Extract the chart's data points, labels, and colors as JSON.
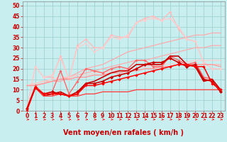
{
  "background_color": "#c8eef0",
  "grid_color": "#99cccc",
  "xlabel": "Vent moyen/en rafales ( km/h )",
  "xlabel_color": "#cc0000",
  "xlabel_fontsize": 7,
  "xtick_fontsize": 5.5,
  "ytick_fontsize": 5.5,
  "xlim": [
    -0.5,
    23.5
  ],
  "ylim": [
    0,
    52
  ],
  "yticks": [
    0,
    5,
    10,
    15,
    20,
    25,
    30,
    35,
    40,
    45,
    50
  ],
  "xticks": [
    0,
    1,
    2,
    3,
    4,
    5,
    6,
    7,
    8,
    9,
    10,
    11,
    12,
    13,
    14,
    15,
    16,
    17,
    18,
    19,
    20,
    21,
    22,
    23
  ],
  "lines": [
    {
      "x": [
        0,
        1,
        2,
        3,
        4,
        5,
        6,
        7,
        8,
        9,
        10,
        11,
        12,
        13,
        14,
        15,
        16,
        17,
        18,
        19,
        20,
        21,
        22,
        23
      ],
      "y": [
        1,
        21,
        16,
        16,
        26,
        15,
        31,
        34,
        30,
        30,
        36,
        35,
        35,
        42,
        44,
        45,
        43,
        47,
        39,
        34,
        33,
        23,
        20,
        20
      ],
      "color": "#ffbbbb",
      "lw": 0.9,
      "marker": "D",
      "markersize": 2.0,
      "alpha": 1.0,
      "zorder": 2
    },
    {
      "x": [
        0,
        1,
        2,
        3,
        4,
        5,
        6,
        7,
        8,
        9,
        10,
        11,
        12,
        13,
        14,
        15,
        16,
        17,
        18,
        19,
        20,
        21,
        22,
        23
      ],
      "y": [
        12,
        12,
        13,
        14,
        15,
        16,
        18,
        20,
        21,
        22,
        24,
        26,
        28,
        29,
        30,
        31,
        32,
        33,
        34,
        35,
        36,
        36,
        37,
        37
      ],
      "color": "#ffaaaa",
      "lw": 0.9,
      "marker": null,
      "markersize": 0,
      "alpha": 1.0,
      "zorder": 2
    },
    {
      "x": [
        0,
        1,
        2,
        3,
        4,
        5,
        6,
        7,
        8,
        9,
        10,
        11,
        12,
        13,
        14,
        15,
        16,
        17,
        18,
        19,
        20,
        21,
        22,
        23
      ],
      "y": [
        1,
        21,
        16,
        17,
        25,
        15,
        30,
        32,
        28,
        30,
        35,
        34,
        36,
        42,
        43,
        44,
        43,
        44,
        40,
        34,
        33,
        23,
        20,
        20
      ],
      "color": "#ffcccc",
      "lw": 0.9,
      "marker": "D",
      "markersize": 1.8,
      "alpha": 1.0,
      "zorder": 2
    },
    {
      "x": [
        0,
        1,
        2,
        3,
        4,
        5,
        6,
        7,
        8,
        9,
        10,
        11,
        12,
        13,
        14,
        15,
        16,
        17,
        18,
        19,
        20,
        21,
        22,
        23
      ],
      "y": [
        12,
        12,
        13,
        14,
        14,
        16,
        17,
        18,
        19,
        20,
        21,
        22,
        23,
        24,
        24,
        25,
        26,
        27,
        28,
        29,
        30,
        30,
        31,
        31
      ],
      "color": "#ffaaaa",
      "lw": 0.9,
      "marker": null,
      "markersize": 0,
      "alpha": 1.0,
      "zorder": 2
    },
    {
      "x": [
        0,
        1,
        2,
        3,
        4,
        5,
        6,
        7,
        8,
        9,
        10,
        11,
        12,
        13,
        14,
        15,
        16,
        17,
        18,
        19,
        20,
        21,
        22,
        23
      ],
      "y": [
        1,
        12,
        8,
        9,
        19,
        8,
        14,
        20,
        19,
        18,
        20,
        21,
        20,
        24,
        24,
        21,
        21,
        26,
        24,
        22,
        23,
        16,
        15,
        10
      ],
      "color": "#ff6666",
      "lw": 1.0,
      "marker": "D",
      "markersize": 2.0,
      "alpha": 1.0,
      "zorder": 3
    },
    {
      "x": [
        0,
        1,
        2,
        3,
        4,
        5,
        6,
        7,
        8,
        9,
        10,
        11,
        12,
        13,
        14,
        15,
        16,
        17,
        18,
        19,
        20,
        21,
        22,
        23
      ],
      "y": [
        1,
        11,
        8,
        9,
        8,
        7,
        9,
        13,
        13,
        14,
        16,
        17,
        18,
        20,
        22,
        23,
        23,
        25,
        23,
        21,
        22,
        15,
        14,
        9
      ],
      "color": "#cc0000",
      "lw": 1.2,
      "marker": "D",
      "markersize": 2.5,
      "alpha": 1.0,
      "zorder": 4
    },
    {
      "x": [
        0,
        1,
        2,
        3,
        4,
        5,
        6,
        7,
        8,
        9,
        10,
        11,
        12,
        13,
        14,
        15,
        16,
        17,
        18,
        19,
        20,
        21,
        22,
        23
      ],
      "y": [
        0,
        11,
        8,
        8,
        8,
        7,
        8,
        12,
        12,
        13,
        14,
        15,
        16,
        17,
        18,
        19,
        20,
        21,
        22,
        22,
        21,
        21,
        13,
        10
      ],
      "color": "#ff0000",
      "lw": 1.1,
      "marker": "D",
      "markersize": 2.2,
      "alpha": 1.0,
      "zorder": 4
    },
    {
      "x": [
        0,
        1,
        2,
        3,
        4,
        5,
        6,
        7,
        8,
        9,
        10,
        11,
        12,
        13,
        14,
        15,
        16,
        17,
        18,
        19,
        20,
        21,
        22,
        23
      ],
      "y": [
        1,
        11,
        7,
        8,
        9,
        7,
        8,
        13,
        14,
        16,
        18,
        19,
        19,
        22,
        22,
        22,
        22,
        26,
        26,
        22,
        21,
        14,
        15,
        10
      ],
      "color": "#cc0000",
      "lw": 1.2,
      "marker": null,
      "markersize": 0,
      "alpha": 1.0,
      "zorder": 3
    },
    {
      "x": [
        0,
        1,
        2,
        3,
        4,
        5,
        6,
        7,
        8,
        9,
        10,
        11,
        12,
        13,
        14,
        15,
        16,
        17,
        18,
        19,
        20,
        21,
        22,
        23
      ],
      "y": [
        12,
        13,
        14,
        14,
        15,
        15,
        16,
        16,
        17,
        17,
        18,
        18,
        19,
        19,
        20,
        20,
        21,
        21,
        22,
        22,
        22,
        22,
        22,
        22
      ],
      "color": "#ffbbbb",
      "lw": 0.9,
      "marker": null,
      "markersize": 0,
      "alpha": 1.0,
      "zorder": 2
    },
    {
      "x": [
        0,
        1,
        2,
        3,
        4,
        5,
        6,
        7,
        8,
        9,
        10,
        11,
        12,
        13,
        14,
        15,
        16,
        17,
        18,
        19,
        20,
        21,
        22,
        23
      ],
      "y": [
        12,
        13,
        14,
        15,
        16,
        16,
        17,
        17,
        18,
        18,
        19,
        19,
        20,
        20,
        21,
        21,
        22,
        22,
        23,
        23,
        24,
        24,
        24,
        24
      ],
      "color": "#ffcccc",
      "lw": 0.9,
      "marker": null,
      "markersize": 0,
      "alpha": 1.0,
      "zorder": 2
    },
    {
      "x": [
        0,
        1,
        2,
        3,
        4,
        5,
        6,
        7,
        8,
        9,
        10,
        11,
        12,
        13,
        14,
        15,
        16,
        17,
        18,
        19,
        20,
        21,
        22,
        23
      ],
      "y": [
        1,
        11,
        7,
        7,
        8,
        7,
        7,
        8,
        8,
        9,
        9,
        9,
        9,
        10,
        10,
        10,
        10,
        10,
        10,
        10,
        10,
        10,
        10,
        10
      ],
      "color": "#ff4444",
      "lw": 1.0,
      "marker": null,
      "markersize": 0,
      "alpha": 1.0,
      "zorder": 3
    },
    {
      "x": [
        0,
        1,
        2,
        3,
        4,
        5,
        6,
        7,
        8,
        9,
        10,
        11,
        12,
        13,
        14,
        15,
        16,
        17,
        18,
        19,
        20,
        21,
        22,
        23
      ],
      "y": [
        12,
        12,
        13,
        14,
        15,
        15,
        16,
        16,
        17,
        17,
        18,
        18,
        19,
        19,
        20,
        20,
        21,
        21,
        22,
        22,
        22,
        22,
        22,
        21
      ],
      "color": "#ff9999",
      "lw": 0.9,
      "marker": null,
      "markersize": 0,
      "alpha": 1.0,
      "zorder": 2
    }
  ],
  "arrow_unicode": "→",
  "wind_arrow_color": "#ff0000"
}
